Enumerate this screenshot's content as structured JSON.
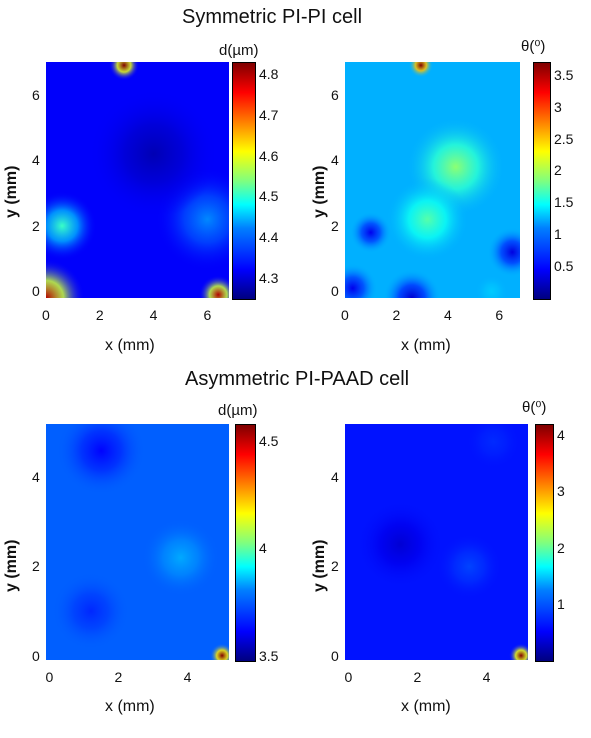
{
  "sections": [
    {
      "title": "Symmetric PI-PI cell"
    },
    {
      "title": "Asymmetric PI-PAAD cell"
    }
  ],
  "chart_data": [
    {
      "type": "heatmap",
      "section": "Symmetric PI-PI cell",
      "xlabel": "x (mm)",
      "ylabel": "y (mm)",
      "xlim": [
        0,
        6.8
      ],
      "ylim": [
        -0.2,
        7.0
      ],
      "xticks": [
        "0",
        "2",
        "4",
        "6"
      ],
      "yticks": [
        "0",
        "2",
        "4",
        "6"
      ],
      "colorbar_title": "d(µm)",
      "clim": [
        4.25,
        4.83
      ],
      "colorbar_ticks": [
        "4.3",
        "4.4",
        "4.5",
        "4.6",
        "4.7",
        "4.8"
      ],
      "base_value": 4.32,
      "features": [
        {
          "x": 2.9,
          "y": 6.9,
          "value": 4.83,
          "spread": 0.35
        },
        {
          "x": 0.0,
          "y": -0.2,
          "value": 4.8,
          "spread": 0.9
        },
        {
          "x": 6.4,
          "y": -0.1,
          "value": 4.8,
          "spread": 0.45
        },
        {
          "x": 0.6,
          "y": 2.0,
          "value": 4.5,
          "spread": 0.8
        },
        {
          "x": 6.0,
          "y": 2.2,
          "value": 4.4,
          "spread": 1.2
        },
        {
          "x": 4.0,
          "y": 4.2,
          "value": 4.28,
          "spread": 1.5
        }
      ]
    },
    {
      "type": "heatmap",
      "section": "Symmetric PI-PI cell",
      "xlabel": "x (mm)",
      "ylabel": "y (mm)",
      "xlim": [
        0,
        6.8
      ],
      "ylim": [
        -0.2,
        7.0
      ],
      "xticks": [
        "0",
        "2",
        "4",
        "6"
      ],
      "yticks": [
        "0",
        "2",
        "4",
        "6"
      ],
      "colorbar_title": "θ(⁰)",
      "clim": [
        0,
        3.7
      ],
      "colorbar_ticks": [
        "0.5",
        "1",
        "1.5",
        "2",
        "2.5",
        "3",
        "3.5"
      ],
      "base_value": 1.1,
      "features": [
        {
          "x": 2.95,
          "y": 6.9,
          "value": 3.7,
          "spread": 0.3
        },
        {
          "x": 4.3,
          "y": 3.8,
          "value": 1.9,
          "spread": 1.2
        },
        {
          "x": 3.2,
          "y": 2.2,
          "value": 1.7,
          "spread": 1.0
        },
        {
          "x": 1.0,
          "y": 1.8,
          "value": 0.4,
          "spread": 0.5
        },
        {
          "x": 0.3,
          "y": 0.1,
          "value": 0.4,
          "spread": 0.6
        },
        {
          "x": 2.6,
          "y": -0.2,
          "value": 0.3,
          "spread": 0.7
        },
        {
          "x": 6.5,
          "y": 1.2,
          "value": 0.35,
          "spread": 0.6
        },
        {
          "x": 5.7,
          "y": 0.0,
          "value": 1.2,
          "spread": 0.4
        }
      ]
    },
    {
      "type": "heatmap",
      "section": "Asymmetric PI-PAAD cell",
      "xlabel": "x (mm)",
      "ylabel": "y (mm)",
      "xlim": [
        -0.1,
        5.2
      ],
      "ylim": [
        -0.1,
        5.2
      ],
      "xticks": [
        "0",
        "2",
        "4"
      ],
      "yticks": [
        "0",
        "2",
        "4"
      ],
      "colorbar_title": "d(µm)",
      "clim": [
        3.48,
        4.58
      ],
      "colorbar_ticks": [
        "3.5",
        "4",
        "4.5"
      ],
      "base_value": 3.72,
      "features": [
        {
          "x": 5.0,
          "y": 0.0,
          "value": 4.58,
          "spread": 0.22
        },
        {
          "x": 1.5,
          "y": 4.6,
          "value": 3.62,
          "spread": 0.8
        },
        {
          "x": 3.8,
          "y": 2.2,
          "value": 3.8,
          "spread": 0.7
        },
        {
          "x": 1.2,
          "y": 1.0,
          "value": 3.66,
          "spread": 0.7
        }
      ]
    },
    {
      "type": "heatmap",
      "section": "Asymmetric PI-PAAD cell",
      "xlabel": "x (mm)",
      "ylabel": "y (mm)",
      "xlim": [
        -0.1,
        5.2
      ],
      "ylim": [
        -0.1,
        5.2
      ],
      "xticks": [
        "0",
        "2",
        "4"
      ],
      "yticks": [
        "0",
        "2",
        "4"
      ],
      "colorbar_title": "θ(⁰)",
      "clim": [
        0,
        4.2
      ],
      "colorbar_ticks": [
        "1",
        "2",
        "3",
        "4"
      ],
      "base_value": 0.6,
      "features": [
        {
          "x": 5.0,
          "y": 0.0,
          "value": 4.2,
          "spread": 0.22
        },
        {
          "x": 1.5,
          "y": 2.5,
          "value": 0.35,
          "spread": 0.8
        },
        {
          "x": 3.5,
          "y": 2.0,
          "value": 0.8,
          "spread": 0.6
        },
        {
          "x": 4.2,
          "y": 4.8,
          "value": 0.7,
          "spread": 0.5
        }
      ]
    }
  ]
}
